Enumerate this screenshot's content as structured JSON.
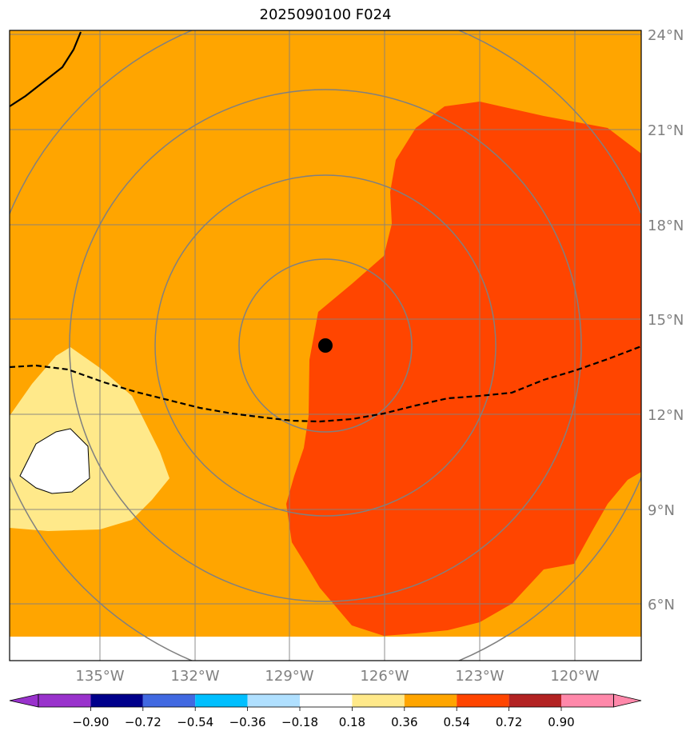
{
  "title": "2025090100 F024",
  "map": {
    "lat_labels": [
      "24°N",
      "21°N",
      "18°N",
      "15°N",
      "12°N",
      "9°N",
      "6°N"
    ],
    "lon_labels": [
      "135°W",
      "132°W",
      "129°W",
      "126°W",
      "123°W",
      "120°W"
    ],
    "fill_colors": {
      "background": "#ffa500",
      "high": "#ff4500",
      "low": "#ffe98a",
      "neutral": "#ffffff"
    },
    "storm_center": {
      "lat": 14.2,
      "lon": -127.9
    },
    "gridline_color": "#808080",
    "range_rings": "concentric gray rings around storm center",
    "dashed_contour": "black dashed line",
    "solid_contour": "black solid line"
  },
  "colorbar": {
    "ticks": [
      "−0.90",
      "−0.72",
      "−0.54",
      "−0.36",
      "−0.18",
      "0.18",
      "0.36",
      "0.54",
      "0.72",
      "0.90"
    ],
    "colors": [
      "#9932cc",
      "#00008b",
      "#4169e1",
      "#00bfff",
      "#b0e0ff",
      "#ffffff",
      "#ffe98a",
      "#ffa500",
      "#ff4500",
      "#b22222",
      "#ff88aa"
    ]
  }
}
